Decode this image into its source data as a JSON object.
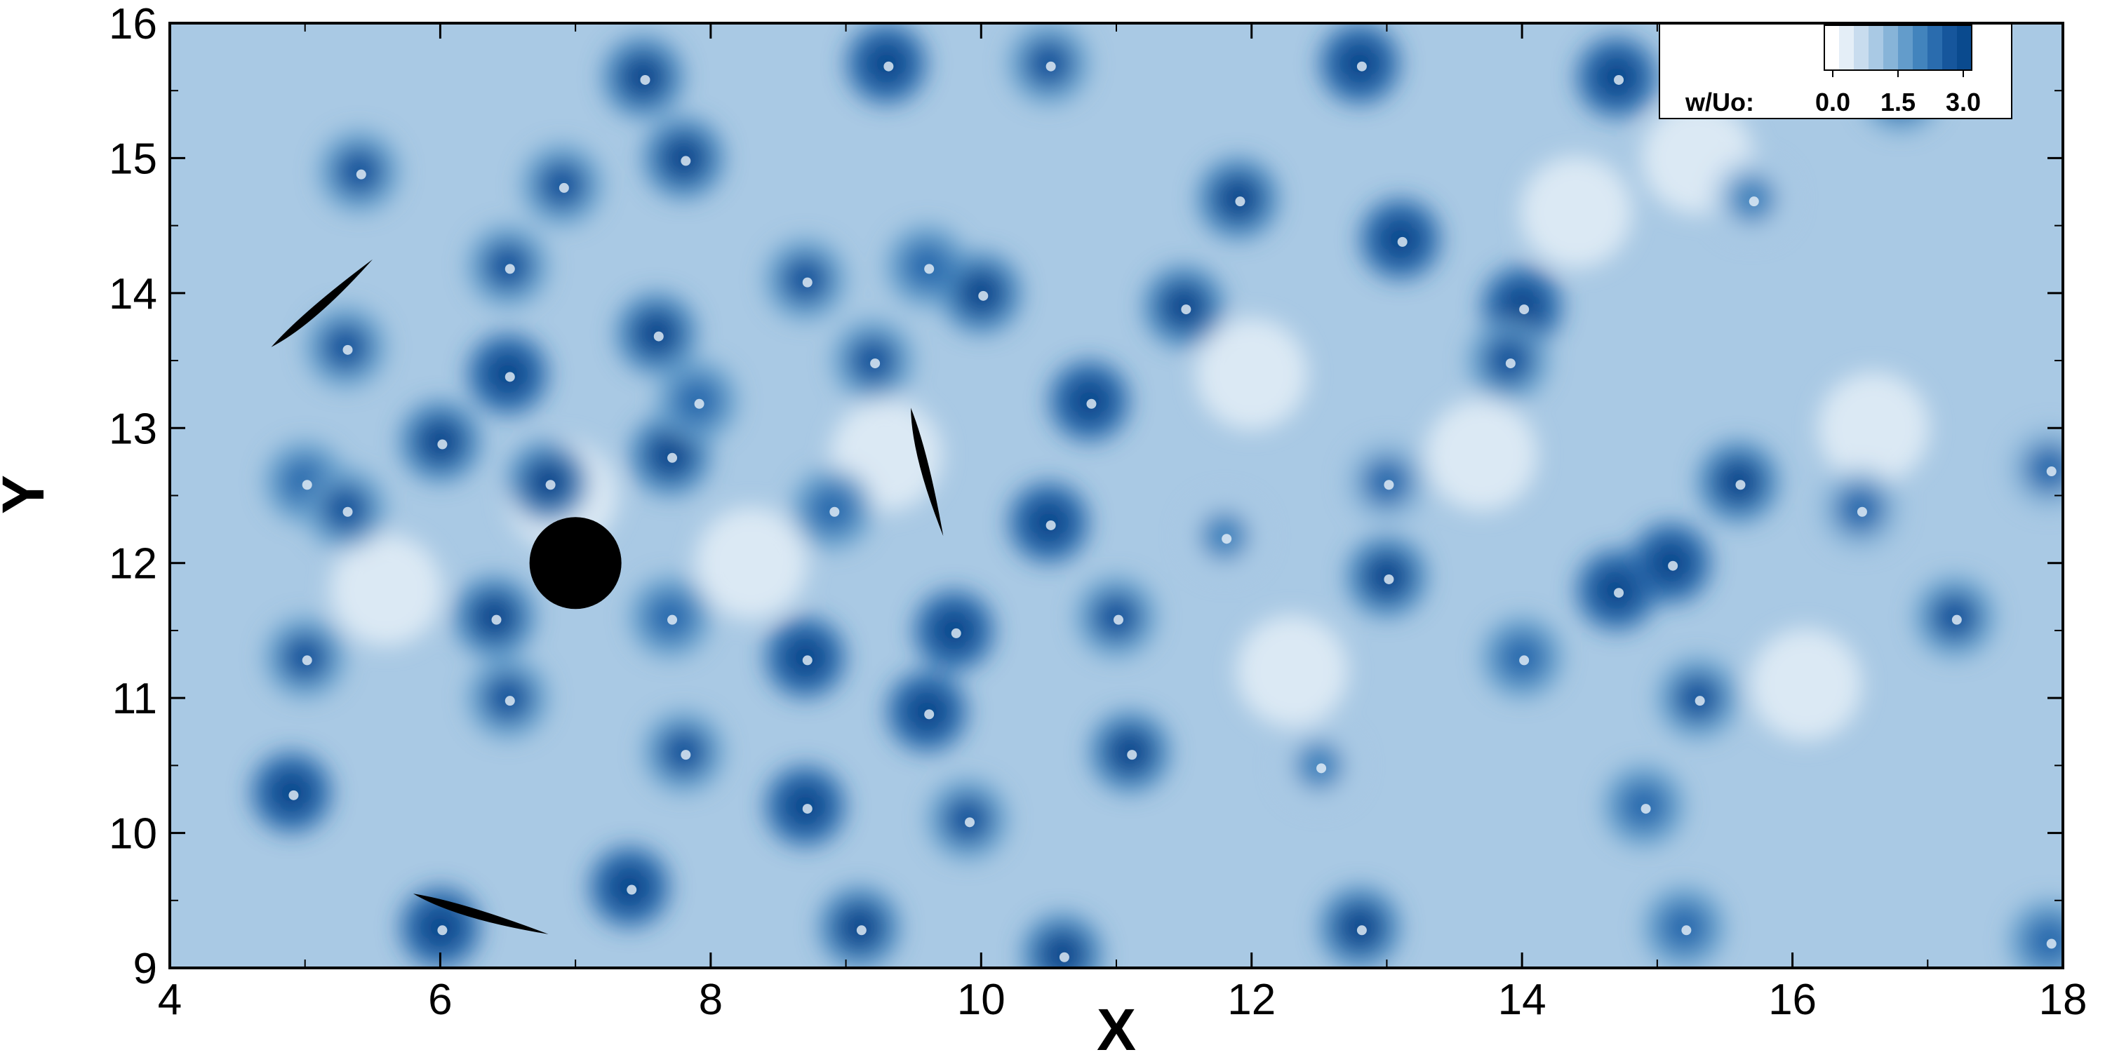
{
  "chart_data": {
    "type": "heatmap",
    "title": "",
    "xlabel": "X",
    "ylabel": "Y",
    "xlim": [
      4,
      18
    ],
    "ylim": [
      9,
      16
    ],
    "x_ticks": [
      4,
      6,
      8,
      10,
      12,
      14,
      16,
      18
    ],
    "y_ticks": [
      9,
      10,
      11,
      12,
      13,
      14,
      15,
      16
    ],
    "colorbar": {
      "label": "w/Uo:",
      "tick_labels": [
        "0.0",
        "1.5",
        "3.0"
      ],
      "range": [
        0.0,
        3.0
      ],
      "levels": 10,
      "colors": [
        "#ffffff",
        "#e4eef7",
        "#c8dcee",
        "#a9c9e4",
        "#87b4d8",
        "#639ccb",
        "#4284bd",
        "#2a6cae",
        "#16569c",
        "#0a4a8e"
      ],
      "placement": "top-right"
    },
    "field_name": "w/Uo",
    "background_level": 1.2,
    "vortex_cores": [
      {
        "x": 4.9,
        "y": 10.3,
        "w": 3.0
      },
      {
        "x": 5.3,
        "y": 13.6,
        "w": 2.6
      },
      {
        "x": 5.4,
        "y": 14.9,
        "w": 2.5
      },
      {
        "x": 5.0,
        "y": 12.6,
        "w": 2.4
      },
      {
        "x": 5.3,
        "y": 12.4,
        "w": 2.6
      },
      {
        "x": 5.0,
        "y": 11.3,
        "w": 2.5
      },
      {
        "x": 6.0,
        "y": 9.3,
        "w": 3.0
      },
      {
        "x": 6.5,
        "y": 14.2,
        "w": 2.6
      },
      {
        "x": 6.5,
        "y": 13.4,
        "w": 3.0
      },
      {
        "x": 6.9,
        "y": 14.8,
        "w": 2.5
      },
      {
        "x": 6.0,
        "y": 12.9,
        "w": 2.8
      },
      {
        "x": 6.8,
        "y": 12.6,
        "w": 2.7
      },
      {
        "x": 6.4,
        "y": 11.6,
        "w": 2.8
      },
      {
        "x": 6.5,
        "y": 11.0,
        "w": 2.6
      },
      {
        "x": 7.4,
        "y": 9.6,
        "w": 3.0
      },
      {
        "x": 7.5,
        "y": 15.6,
        "w": 2.7
      },
      {
        "x": 7.6,
        "y": 13.7,
        "w": 2.7
      },
      {
        "x": 7.7,
        "y": 12.8,
        "w": 2.9
      },
      {
        "x": 7.9,
        "y": 13.2,
        "w": 2.4
      },
      {
        "x": 7.7,
        "y": 11.6,
        "w": 2.4
      },
      {
        "x": 7.8,
        "y": 10.6,
        "w": 2.6
      },
      {
        "x": 7.8,
        "y": 15.0,
        "w": 2.8
      },
      {
        "x": 8.7,
        "y": 14.1,
        "w": 2.6
      },
      {
        "x": 8.9,
        "y": 12.4,
        "w": 2.4
      },
      {
        "x": 8.7,
        "y": 11.3,
        "w": 3.0
      },
      {
        "x": 8.7,
        "y": 10.2,
        "w": 3.0
      },
      {
        "x": 9.1,
        "y": 9.3,
        "w": 2.7
      },
      {
        "x": 9.3,
        "y": 15.7,
        "w": 3.0
      },
      {
        "x": 9.2,
        "y": 13.5,
        "w": 2.6
      },
      {
        "x": 9.6,
        "y": 14.2,
        "w": 2.4
      },
      {
        "x": 9.8,
        "y": 11.5,
        "w": 3.0
      },
      {
        "x": 9.6,
        "y": 10.9,
        "w": 3.0
      },
      {
        "x": 9.9,
        "y": 10.1,
        "w": 2.5
      },
      {
        "x": 10.0,
        "y": 14.0,
        "w": 2.7
      },
      {
        "x": 10.5,
        "y": 12.3,
        "w": 3.0
      },
      {
        "x": 10.8,
        "y": 13.2,
        "w": 3.0
      },
      {
        "x": 10.6,
        "y": 9.1,
        "w": 2.8
      },
      {
        "x": 10.5,
        "y": 15.7,
        "w": 2.6
      },
      {
        "x": 11.1,
        "y": 10.6,
        "w": 2.8
      },
      {
        "x": 11.5,
        "y": 13.9,
        "w": 2.9
      },
      {
        "x": 11.9,
        "y": 14.7,
        "w": 2.8
      },
      {
        "x": 11.0,
        "y": 11.6,
        "w": 2.6
      },
      {
        "x": 12.8,
        "y": 15.7,
        "w": 3.0
      },
      {
        "x": 13.1,
        "y": 14.4,
        "w": 3.0
      },
      {
        "x": 13.0,
        "y": 11.9,
        "w": 2.8
      },
      {
        "x": 12.8,
        "y": 9.3,
        "w": 2.8
      },
      {
        "x": 13.0,
        "y": 12.6,
        "w": 2.2
      },
      {
        "x": 14.0,
        "y": 13.9,
        "w": 3.0
      },
      {
        "x": 13.9,
        "y": 13.5,
        "w": 2.6
      },
      {
        "x": 14.0,
        "y": 11.3,
        "w": 2.4
      },
      {
        "x": 14.7,
        "y": 11.8,
        "w": 3.0
      },
      {
        "x": 15.1,
        "y": 12.0,
        "w": 3.0
      },
      {
        "x": 14.7,
        "y": 15.6,
        "w": 3.0
      },
      {
        "x": 14.9,
        "y": 10.2,
        "w": 2.4
      },
      {
        "x": 15.6,
        "y": 12.6,
        "w": 2.8
      },
      {
        "x": 15.3,
        "y": 11.0,
        "w": 2.6
      },
      {
        "x": 15.2,
        "y": 9.3,
        "w": 2.4
      },
      {
        "x": 16.8,
        "y": 15.5,
        "w": 2.5
      },
      {
        "x": 17.2,
        "y": 11.6,
        "w": 2.6
      },
      {
        "x": 17.9,
        "y": 12.7,
        "w": 2.2
      },
      {
        "x": 17.9,
        "y": 9.2,
        "w": 2.4
      },
      {
        "x": 15.7,
        "y": 14.7,
        "w": 2.0
      },
      {
        "x": 16.5,
        "y": 12.4,
        "w": 2.1
      },
      {
        "x": 12.5,
        "y": 10.5,
        "w": 2.0
      },
      {
        "x": 11.8,
        "y": 12.2,
        "w": 1.9
      }
    ],
    "low_regions": [
      {
        "x": 6.9,
        "y": 12.5,
        "w": 0.4
      },
      {
        "x": 8.3,
        "y": 12.0,
        "w": 0.5
      },
      {
        "x": 12.3,
        "y": 11.2,
        "w": 0.5
      },
      {
        "x": 13.7,
        "y": 12.8,
        "w": 0.4
      },
      {
        "x": 15.3,
        "y": 15.0,
        "w": 0.5
      },
      {
        "x": 16.6,
        "y": 13.0,
        "w": 0.5
      },
      {
        "x": 16.1,
        "y": 11.1,
        "w": 0.4
      },
      {
        "x": 12.0,
        "y": 13.4,
        "w": 0.6
      },
      {
        "x": 9.3,
        "y": 12.8,
        "w": 0.5
      },
      {
        "x": 5.6,
        "y": 11.8,
        "w": 0.5
      },
      {
        "x": 14.4,
        "y": 14.6,
        "w": 0.5
      }
    ],
    "bodies": [
      {
        "name": "cylinder",
        "shape": "circle",
        "cx": 7.0,
        "cy": 12.0,
        "r": 0.34
      },
      {
        "name": "blade-upper-left",
        "shape": "blade",
        "x1": 4.75,
        "y1": 13.6,
        "x2": 5.5,
        "y2": 14.25
      },
      {
        "name": "blade-lower",
        "shape": "blade",
        "x1": 5.8,
        "y1": 9.55,
        "x2": 6.8,
        "y2": 9.25
      },
      {
        "name": "blade-right",
        "shape": "blade",
        "x1": 9.48,
        "y1": 13.15,
        "x2": 9.72,
        "y2": 12.2
      }
    ]
  }
}
